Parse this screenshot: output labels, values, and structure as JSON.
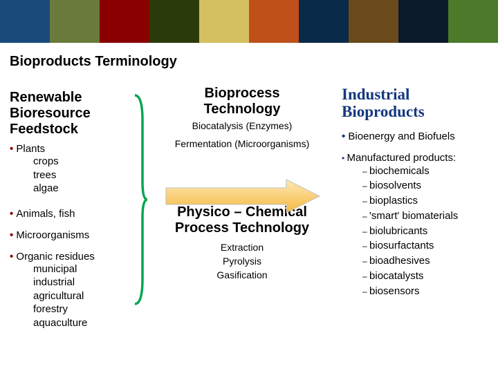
{
  "banner_colors": [
    "#1a4a7a",
    "#6a7a3a",
    "#8a0000",
    "#2a3a0a",
    "#d4c060",
    "#c0501a",
    "#0a2a4a",
    "#6a4a1a",
    "#0a1a2a",
    "#4a7a2a"
  ],
  "title": "Bioproducts Terminology",
  "brace_color": "#00a651",
  "col1": {
    "header": "Renewable\nBioresource\nFeedstock",
    "items": [
      {
        "label": "Plants",
        "subs": [
          "crops",
          "trees",
          "algae"
        ]
      },
      {
        "label": "Animals, fish",
        "subs": []
      },
      {
        "label": "Microorganisms",
        "subs": []
      },
      {
        "label": "Organic residues",
        "subs": [
          "municipal",
          "industrial",
          "agricultural",
          "forestry",
          "aquaculture"
        ]
      }
    ]
  },
  "col2": {
    "header1": "Bioprocess\nTechnology",
    "lines1": [
      "Biocatalysis (Enzymes)",
      "Fermentation (Microorganisms)"
    ],
    "arrow_fill": "#ffcc66",
    "arrow_stroke": "#bfbfbf",
    "header2": "Physico – Chemical\nProcess Technology",
    "lines2": [
      "Extraction",
      "Pyrolysis",
      "Gasification"
    ]
  },
  "col3": {
    "header": "Industrial\nBioproducts",
    "bullet1": "Bioenergy and Biofuels",
    "mfg_label": "Manufactured products:",
    "mfg_items": [
      "biochemicals",
      "biosolvents",
      "bioplastics",
      "'smart' biomaterials",
      "biolubricants",
      "biosurfactants",
      "bioadhesives",
      "biocatalysts",
      "biosensors"
    ]
  }
}
